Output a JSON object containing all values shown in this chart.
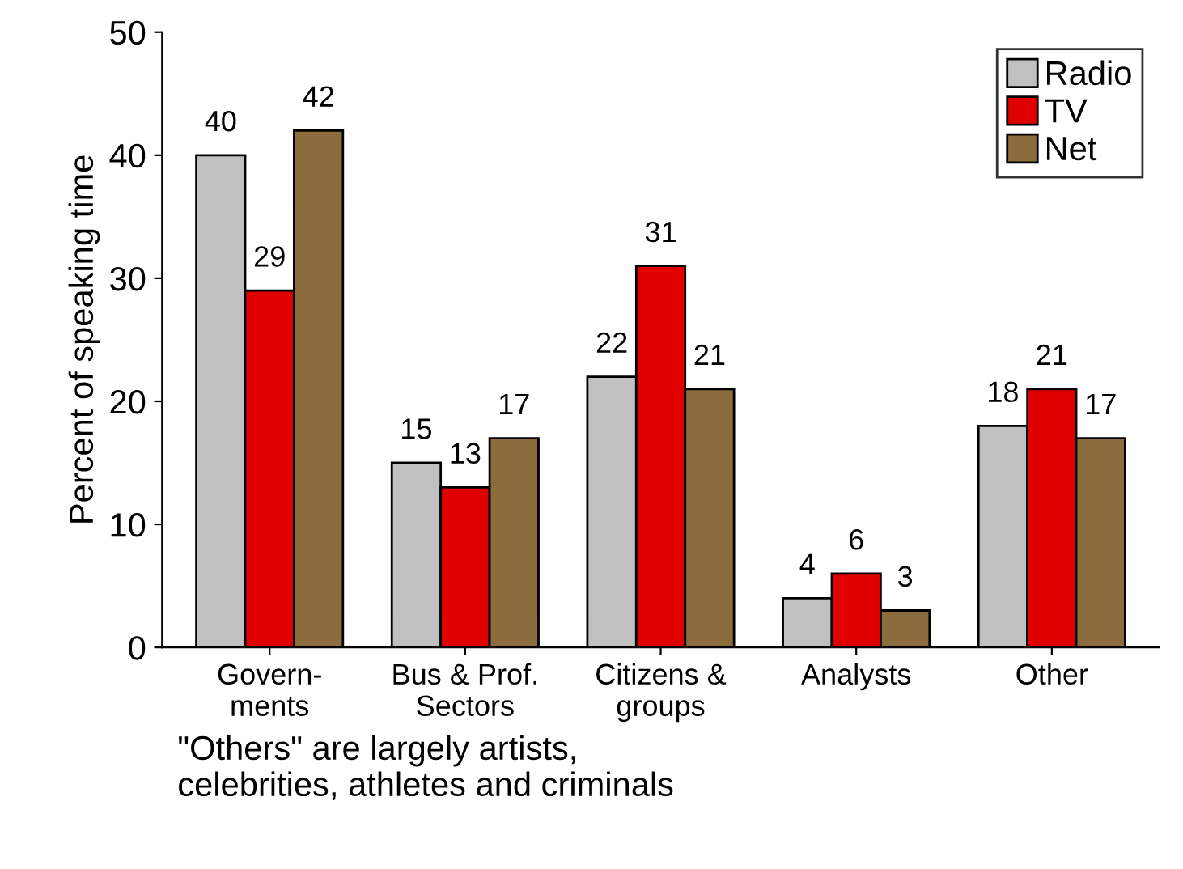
{
  "chart_data": {
    "type": "bar",
    "ylabel": "Percent of speaking time",
    "categories": [
      "Govern-\nments",
      "Bus & Prof.\nSectors",
      "Citizens &\ngroups",
      "Analysts",
      "Other"
    ],
    "series": [
      {
        "name": "Radio",
        "color": "#c0c0c0",
        "values": [
          40,
          15,
          22,
          4,
          18
        ]
      },
      {
        "name": "TV",
        "color": "#e00000",
        "values": [
          29,
          13,
          31,
          6,
          21
        ]
      },
      {
        "name": "Net",
        "color": "#8b6c3c",
        "values": [
          42,
          17,
          21,
          3,
          17
        ]
      }
    ],
    "ylim": [
      0,
      50
    ],
    "yticks": [
      0,
      10,
      20,
      30,
      40,
      50
    ],
    "grid": false,
    "legend": "top right",
    "data_labels": true,
    "annotations": [
      "\"Others\" are largely artists,\ncelebrities, athletes and criminals"
    ]
  }
}
